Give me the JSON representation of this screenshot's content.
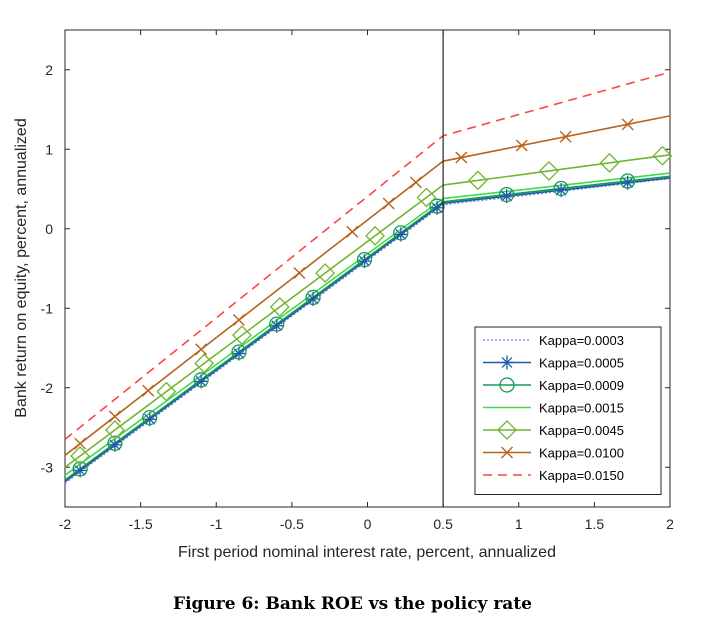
{
  "caption": "Figure 6: Bank ROE vs the policy rate",
  "chart_data": {
    "type": "line",
    "title": "",
    "xlabel": "First period nominal interest rate, percent, annualized",
    "ylabel": "Bank return on equity, percent, annualized",
    "xlim": [
      -2,
      2
    ],
    "ylim": [
      -3.5,
      2.5
    ],
    "xticks": [
      -2,
      -1.5,
      -1,
      -0.5,
      0,
      0.5,
      1,
      1.5,
      2
    ],
    "xtick_labels": [
      "-2",
      "-1.5",
      "-1",
      "-0.5",
      "0",
      "0.5",
      "1",
      "1.5",
      "2"
    ],
    "yticks": [
      -3,
      -2,
      -1,
      0,
      1,
      2
    ],
    "ytick_labels": [
      "-3",
      "-2",
      "-1",
      "0",
      "1",
      "2"
    ],
    "vline_x": 0.5,
    "legend_position": "bottom-right",
    "series": [
      {
        "name": "Kappa=0.0003",
        "color": "#7b7bd6",
        "dash": "dotted",
        "marker": "none",
        "x": [
          -2,
          0.5,
          2
        ],
        "y": [
          -3.2,
          0.3,
          0.63
        ]
      },
      {
        "name": "Kappa=0.0005",
        "color": "#1f5aa8",
        "dash": "solid",
        "marker": "asterisk",
        "x": [
          -2,
          0.5,
          2
        ],
        "y": [
          -3.18,
          0.32,
          0.64
        ],
        "marker_x": [
          -1.9,
          -1.67,
          -1.44,
          -1.1,
          -0.85,
          -0.6,
          -0.36,
          -0.02,
          0.22,
          0.46,
          0.92,
          1.28,
          1.72
        ]
      },
      {
        "name": "Kappa=0.0009",
        "color": "#159a5c",
        "dash": "solid",
        "marker": "circle",
        "x": [
          -2,
          0.5,
          2
        ],
        "y": [
          -3.16,
          0.34,
          0.66
        ],
        "marker_x": [
          -1.9,
          -1.67,
          -1.44,
          -1.1,
          -0.85,
          -0.6,
          -0.36,
          -0.02,
          0.22,
          0.46,
          0.92,
          1.28,
          1.72
        ]
      },
      {
        "name": "Kappa=0.0015",
        "color": "#44d94a",
        "dash": "solid",
        "marker": "none",
        "x": [
          -2,
          0.5,
          2
        ],
        "y": [
          -3.1,
          0.38,
          0.7
        ]
      },
      {
        "name": "Kappa=0.0045",
        "color": "#6fb52e",
        "dash": "solid",
        "marker": "diamond",
        "x": [
          -2,
          0.5,
          2
        ],
        "y": [
          -3.0,
          0.55,
          0.93
        ],
        "marker_x": [
          -1.9,
          -1.67,
          -1.33,
          -1.08,
          -0.83,
          -0.58,
          -0.28,
          0.05,
          0.39,
          0.73,
          1.2,
          1.6,
          1.95
        ]
      },
      {
        "name": "Kappa=0.0100",
        "color": "#b8621b",
        "dash": "solid",
        "marker": "x",
        "x": [
          -2,
          0.5,
          2
        ],
        "y": [
          -2.85,
          0.85,
          1.42
        ],
        "marker_x": [
          -1.9,
          -1.67,
          -1.45,
          -1.1,
          -0.85,
          -0.45,
          -0.1,
          0.14,
          0.32,
          0.62,
          1.02,
          1.31,
          1.72
        ]
      },
      {
        "name": "Kappa=0.0150",
        "color": "#ff4444",
        "dash": "dashed",
        "marker": "none",
        "x": [
          -2,
          0.5,
          2
        ],
        "y": [
          -2.65,
          1.17,
          1.97
        ]
      }
    ]
  }
}
